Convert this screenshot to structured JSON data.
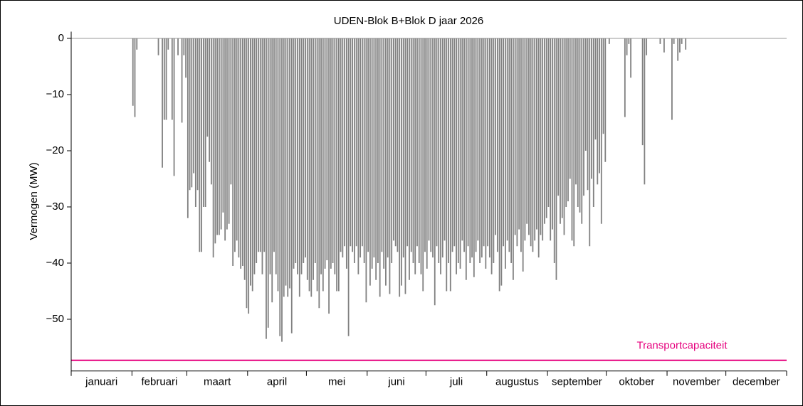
{
  "chart_data": {
    "type": "bar",
    "title": "UDEN-Blok B+Blok D jaar 2026",
    "ylabel": "Vermogen (MW)",
    "color": "#808080",
    "months": [
      "januari",
      "februari",
      "maart",
      "april",
      "mei",
      "juni",
      "juli",
      "augustus",
      "september",
      "oktober",
      "november",
      "december"
    ],
    "xlim": [
      0,
      365
    ],
    "xticks": [
      0,
      31,
      59,
      90,
      120,
      151,
      181,
      212,
      243,
      273,
      304,
      334,
      365
    ],
    "ylim": [
      -59.2,
      1.2
    ],
    "yticks": [
      0,
      {
        "value": -10,
        "label": "−10"
      },
      {
        "value": -20,
        "label": "−20"
      },
      {
        "value": -30,
        "label": "−30"
      },
      {
        "value": -40,
        "label": "−40"
      },
      {
        "value": -50,
        "label": "−50"
      }
    ],
    "capacity": -57.3,
    "capacity_label": "Transportcapaciteit",
    "capacity_color": "#e6007e",
    "values": [
      0,
      0,
      0,
      0,
      0,
      0,
      0,
      0,
      0,
      0,
      0,
      0,
      0,
      0,
      0,
      0,
      0,
      0,
      0,
      0,
      0,
      0,
      0,
      0,
      0,
      0,
      0,
      0,
      0,
      0,
      0,
      -12,
      -14,
      -2,
      0,
      0,
      0,
      0,
      0,
      0,
      0,
      0,
      0,
      0,
      -3,
      0,
      -23,
      -14.5,
      -14.5,
      -2,
      0,
      -14.5,
      -24.5,
      0,
      -3,
      0,
      -15,
      -3,
      -7,
      -32,
      -27,
      -26.5,
      -24,
      -30,
      -27,
      -38,
      -38,
      -30,
      -30,
      -17.5,
      -22,
      -26,
      -39,
      -36.5,
      -35,
      -35,
      -34,
      -31,
      -36,
      -34,
      -33,
      -26,
      -40.5,
      -38,
      -36,
      -39,
      -41,
      -40.5,
      -43,
      -48,
      -49,
      -44,
      -45,
      -42,
      -40,
      -38,
      -38,
      -42,
      -38,
      -53.5,
      -51.5,
      -42,
      -47,
      -38,
      -42,
      -45,
      -53,
      -54,
      -46,
      -44,
      -46,
      -44.5,
      -52.5,
      -41,
      -40,
      -42,
      -46,
      -42,
      -40,
      -39,
      -43,
      -45,
      -46,
      -43,
      -40,
      -45,
      -48,
      -42,
      -45,
      -41,
      -39.5,
      -49,
      -41,
      -40,
      -42,
      -45,
      -45,
      -38,
      -39,
      -37,
      -41,
      -53,
      -37,
      -38,
      -40,
      -37,
      -42,
      -39,
      -37,
      -40,
      -47,
      -38,
      -44,
      -41,
      -39,
      -43,
      -40,
      -46,
      -38,
      -41,
      -44,
      -39,
      -45.5,
      -40,
      -36,
      -37,
      -38,
      -46,
      -44,
      -39,
      -45.5,
      -37,
      -43,
      -38,
      -40,
      -42,
      -37,
      -40,
      -42,
      -45,
      -38,
      -41,
      -36,
      -38,
      -39,
      -47.5,
      -37,
      -40,
      -42,
      -39,
      -36,
      -45,
      -40,
      -45,
      -38,
      -37,
      -42,
      -40,
      -41,
      -36,
      -38,
      -43,
      -37,
      -40,
      -39,
      -42.5,
      -38,
      -36,
      -40,
      -39,
      -37,
      -41,
      -37,
      -39,
      -42,
      -40,
      -35,
      -38,
      -45,
      -44,
      -37,
      -41,
      -36,
      -38,
      -40,
      -43,
      -35,
      -37,
      -34,
      -38,
      -41.5,
      -36,
      -33,
      -35,
      -37,
      -38,
      -36,
      -34,
      -39,
      -35,
      -36,
      -33,
      -32,
      -30,
      -36,
      -34,
      -40,
      -43,
      -28,
      -33,
      -32,
      -35,
      -30,
      -29,
      -25,
      -36,
      -37,
      -26,
      -30,
      -31,
      -33,
      -28,
      -20,
      -27,
      -37,
      -25,
      -30,
      -18,
      -26,
      -24,
      -33,
      -17,
      -22,
      0,
      -1,
      0,
      0,
      0,
      0,
      0,
      0,
      0,
      -14,
      -3,
      -1,
      -7,
      0,
      0,
      0,
      0,
      0,
      -19,
      -26,
      -3,
      0,
      0,
      0,
      0,
      0,
      0,
      -1,
      0,
      -2.5,
      0,
      0,
      0,
      -14.5,
      -1,
      0,
      -4,
      -2.5,
      -1,
      0,
      -2,
      0,
      0,
      0,
      0,
      0,
      0,
      0,
      0,
      0,
      0,
      0,
      0,
      0,
      0,
      0,
      0,
      0,
      0,
      0,
      0,
      0,
      0,
      0,
      0,
      0,
      0,
      0,
      0,
      0,
      0,
      0,
      0,
      0,
      0,
      0,
      0,
      0,
      0,
      0,
      0,
      0,
      0,
      0,
      0,
      0,
      0,
      0,
      0,
      0,
      0,
      0
    ]
  }
}
